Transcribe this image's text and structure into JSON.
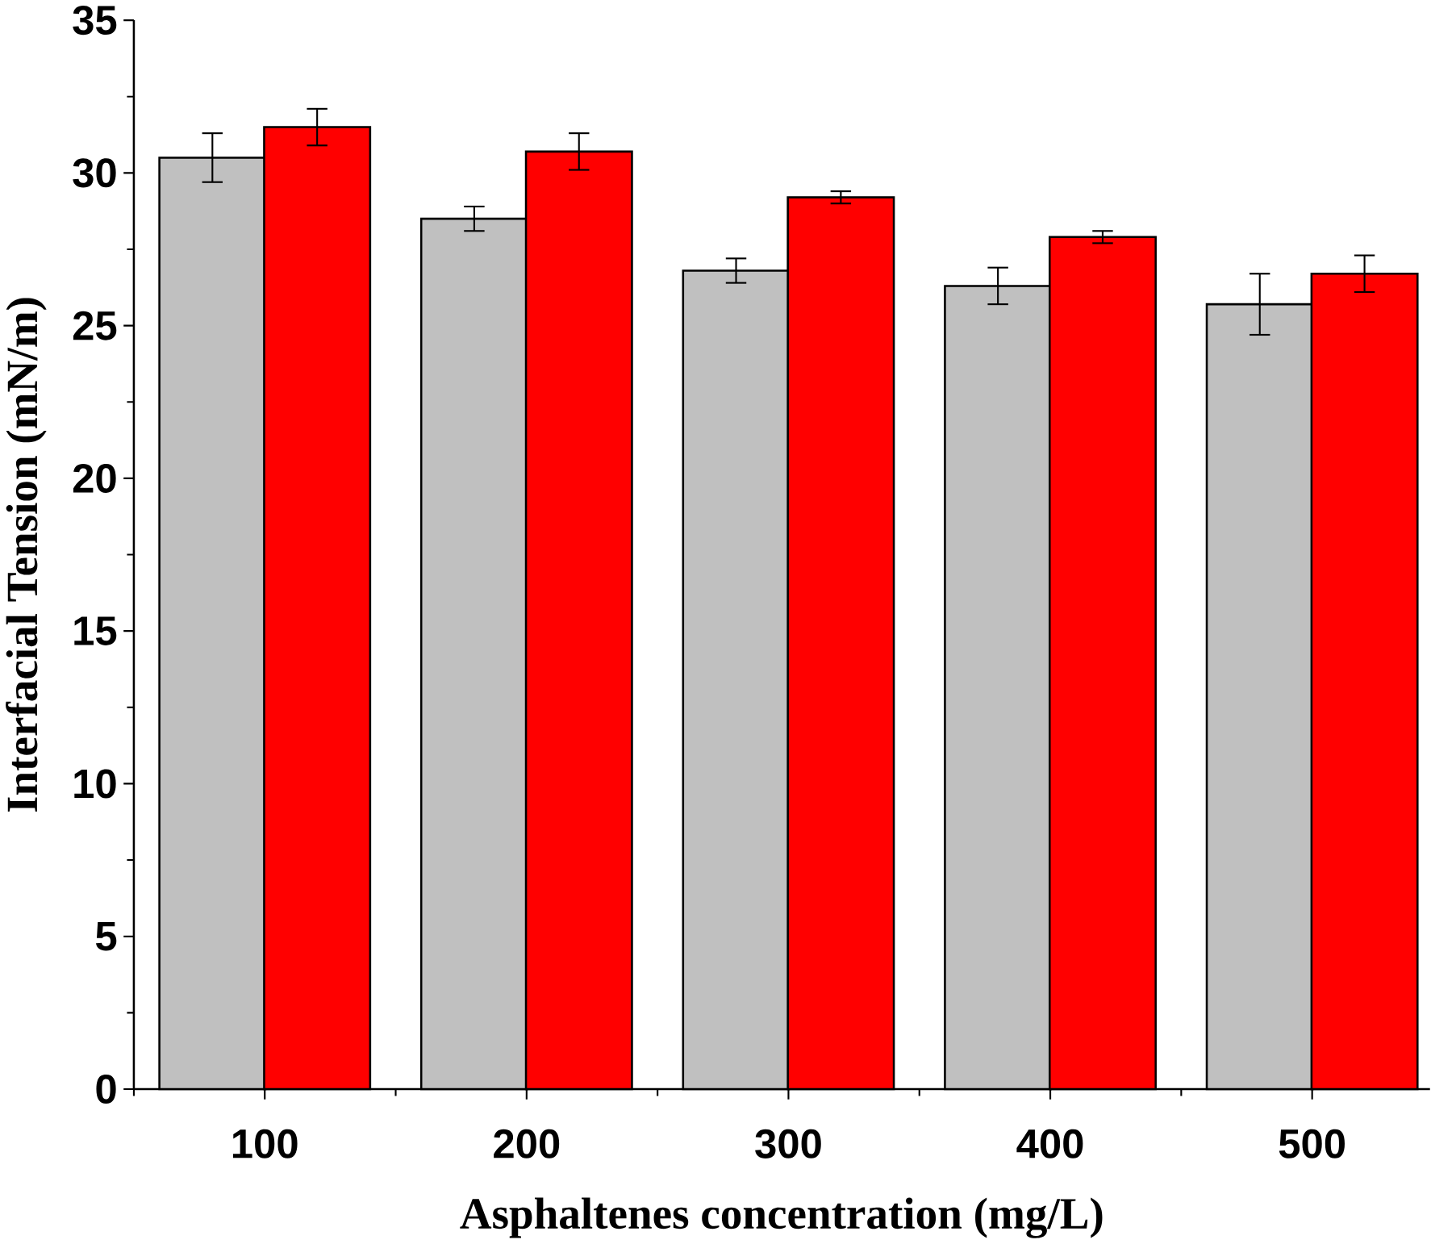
{
  "chart_data": {
    "type": "bar",
    "xlabel": "Asphaltenes concentration (mg/L)",
    "ylabel": "Interfacial Tension (mN/m)",
    "categories": [
      "100",
      "200",
      "300",
      "400",
      "500"
    ],
    "series": [
      {
        "color": "#c0c0c0",
        "values": [
          30.5,
          28.5,
          26.8,
          26.3,
          25.7
        ],
        "errors": [
          0.8,
          0.4,
          0.4,
          0.6,
          1.0
        ]
      },
      {
        "color": "#ff0000",
        "values": [
          31.5,
          30.7,
          29.2,
          27.9,
          26.7
        ],
        "errors": [
          0.6,
          0.6,
          0.2,
          0.2,
          0.6
        ]
      }
    ],
    "ylim": [
      0,
      35
    ],
    "yticks": [
      0,
      5,
      10,
      15,
      20,
      25,
      30,
      35
    ]
  }
}
